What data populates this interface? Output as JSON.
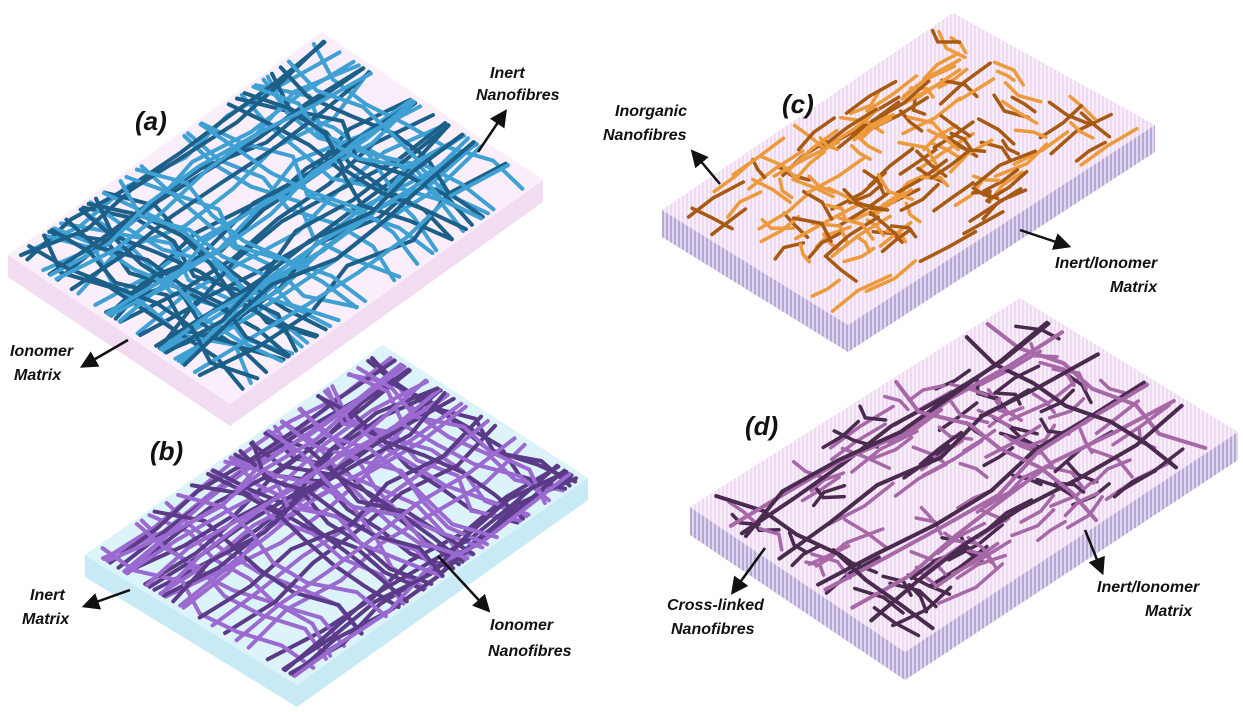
{
  "panels": {
    "a": {
      "label": "(a)",
      "matrix_top": "#fbeefb",
      "matrix_side": "#f2dcf1",
      "fibre_light": "#3fa0d3",
      "fibre_dark": "#1c5f89",
      "callouts": {
        "fibres": [
          "Inert",
          "Nanofibres"
        ],
        "matrix": [
          "Ionomer",
          "Matrix"
        ]
      }
    },
    "b": {
      "label": "(b)",
      "matrix_top": "#ddf3fa",
      "matrix_side": "#c7eaf5",
      "fibre_light": "#9a6ad0",
      "fibre_dark": "#5b3a88",
      "callouts": {
        "matrix": [
          "Inert",
          "Matrix"
        ],
        "fibres": [
          "Ionomer",
          "Nanofibres"
        ]
      }
    },
    "c": {
      "label": "(c)",
      "matrix_top": "#f0d9f2",
      "matrix_side": "#b8a7d6",
      "fibre_light": "#ec9a3c",
      "fibre_dark": "#a85a13",
      "callouts": {
        "fibres": [
          "Inorganic",
          "Nanofibres"
        ],
        "matrix": [
          "Inert/Ionomer",
          "Matrix"
        ]
      }
    },
    "d": {
      "label": "(d)",
      "matrix_top": "#f0d9f2",
      "matrix_side": "#b8a7d6",
      "fibre_light": "#a768a8",
      "fibre_dark": "#4a2a4f",
      "callouts": {
        "fibres": [
          "Cross-linked",
          "Nanofibres"
        ],
        "matrix": [
          "Inert/Ionomer",
          "Matrix"
        ]
      }
    }
  }
}
